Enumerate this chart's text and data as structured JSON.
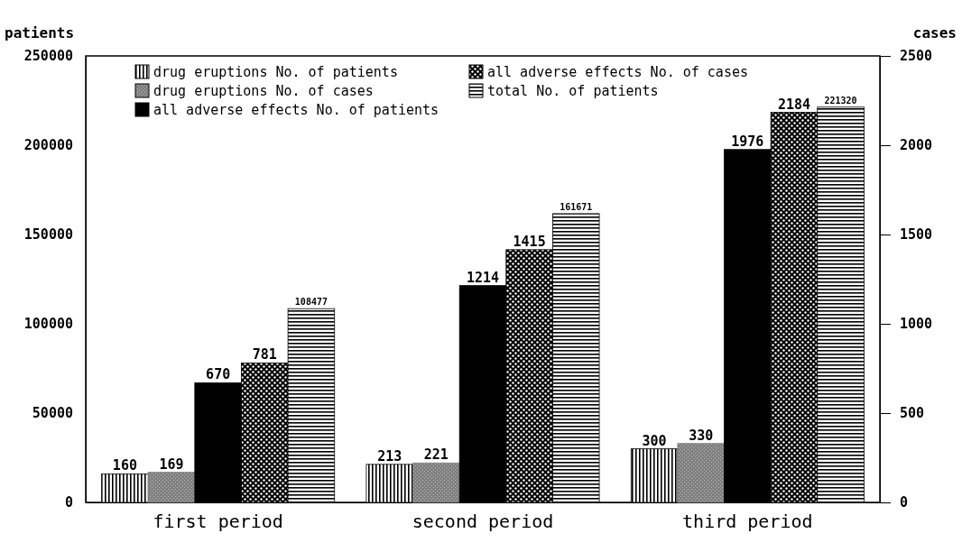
{
  "chart_data": {
    "type": "bar",
    "ylabel": "patients",
    "y2label": "cases",
    "categories": [
      "first period",
      "second period",
      "third period"
    ],
    "series": [
      {
        "name": "drug eruptions No. of patients",
        "color": "#000000",
        "axis": "y2",
        "values": [
          160,
          213,
          300
        ]
      },
      {
        "name": "drug eruptions No. of cases",
        "color": "#808080",
        "axis": "y2",
        "values": [
          169,
          221,
          330
        ]
      },
      {
        "name": "all adverse effects No. of patients",
        "color": "#000000",
        "axis": "y2",
        "values": [
          670,
          1214,
          1976
        ]
      },
      {
        "name": "all adverse effects No. of cases",
        "color": "#000000",
        "axis": "y2",
        "values": [
          781,
          1415,
          2184
        ]
      },
      {
        "name": "total No. of patients",
        "color": "#000000",
        "axis": "y",
        "values": [
          108477,
          161671,
          221320
        ]
      }
    ],
    "ylim": [
      0,
      250000
    ],
    "yticks": [
      0,
      50000,
      100000,
      150000,
      200000,
      250000
    ],
    "y2lim": [
      0,
      2500
    ],
    "y2ticks": [
      0,
      500,
      1000,
      1500,
      2000,
      2500
    ],
    "data_labels": true,
    "legend": "top left"
  }
}
